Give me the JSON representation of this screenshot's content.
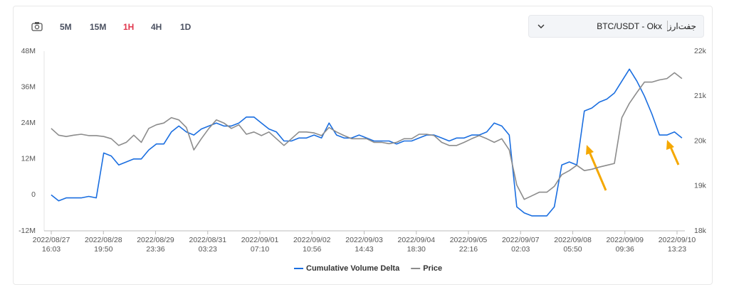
{
  "toolbar": {
    "intervals": [
      "5M",
      "15M",
      "1H",
      "4H",
      "1D"
    ]
  },
  "selector": {
    "pair": "BTC/USDT - Okx",
    "label": "جفت‌ارز"
  },
  "chart_data": {
    "type": "line",
    "x": [
      "2022/08/27 16:00",
      "2022/08/27 20:00",
      "2022/08/28 00:00",
      "2022/08/28 04:00",
      "2022/08/28 08:00",
      "2022/08/28 12:00",
      "2022/08/28 16:00",
      "2022/08/28 20:00",
      "2022/08/29 00:00",
      "2022/08/29 04:00",
      "2022/08/29 08:00",
      "2022/08/29 12:00",
      "2022/08/29 16:00",
      "2022/08/29 20:00",
      "2022/08/30 00:00",
      "2022/08/30 04:00",
      "2022/08/30 08:00",
      "2022/08/30 12:00",
      "2022/08/30 16:00",
      "2022/08/30 20:00",
      "2022/08/31 00:00",
      "2022/08/31 04:00",
      "2022/08/31 08:00",
      "2022/08/31 12:00",
      "2022/08/31 16:00",
      "2022/08/31 20:00",
      "2022/09/01 00:00",
      "2022/09/01 04:00",
      "2022/09/01 08:00",
      "2022/09/01 12:00",
      "2022/09/01 16:00",
      "2022/09/01 20:00",
      "2022/09/02 00:00",
      "2022/09/02 04:00",
      "2022/09/02 08:00",
      "2022/09/02 12:00",
      "2022/09/02 16:00",
      "2022/09/02 20:00",
      "2022/09/03 00:00",
      "2022/09/03 04:00",
      "2022/09/03 08:00",
      "2022/09/03 12:00",
      "2022/09/03 16:00",
      "2022/09/03 20:00",
      "2022/09/04 00:00",
      "2022/09/04 04:00",
      "2022/09/04 08:00",
      "2022/09/04 12:00",
      "2022/09/04 16:00",
      "2022/09/04 20:00",
      "2022/09/05 00:00",
      "2022/09/05 04:00",
      "2022/09/05 08:00",
      "2022/09/05 12:00",
      "2022/09/05 16:00",
      "2022/09/05 20:00",
      "2022/09/06 00:00",
      "2022/09/06 04:00",
      "2022/09/06 08:00",
      "2022/09/06 12:00",
      "2022/09/06 16:00",
      "2022/09/06 20:00",
      "2022/09/07 00:00",
      "2022/09/07 04:00",
      "2022/09/07 08:00",
      "2022/09/07 12:00",
      "2022/09/07 16:00",
      "2022/09/07 20:00",
      "2022/09/08 00:00",
      "2022/09/08 04:00",
      "2022/09/08 08:00",
      "2022/09/08 12:00",
      "2022/09/08 16:00",
      "2022/09/08 20:00",
      "2022/09/09 00:00",
      "2022/09/09 04:00",
      "2022/09/09 08:00",
      "2022/09/09 12:00",
      "2022/09/09 16:00",
      "2022/09/09 20:00",
      "2022/09/10 00:00",
      "2022/09/10 04:00",
      "2022/09/10 08:00",
      "2022/09/10 12:00",
      "2022/09/10 16:00"
    ],
    "xlim": [
      "2022/08/27 12:15",
      "2022/09/10 17:33"
    ],
    "xticks": [
      [
        "2022/08/27",
        "16:03"
      ],
      [
        "2022/08/28",
        "19:50"
      ],
      [
        "2022/08/29",
        "23:36"
      ],
      [
        "2022/08/31",
        "03:23"
      ],
      [
        "2022/09/01",
        "07:10"
      ],
      [
        "2022/09/02",
        "10:56"
      ],
      [
        "2022/09/03",
        "14:43"
      ],
      [
        "2022/09/04",
        "18:30"
      ],
      [
        "2022/09/05",
        "22:16"
      ],
      [
        "2022/09/07",
        "02:03"
      ],
      [
        "2022/09/08",
        "05:50"
      ],
      [
        "2022/09/09",
        "09:36"
      ],
      [
        "2022/09/10",
        "13:23"
      ]
    ],
    "ylim": [
      -12000000,
      48000000
    ],
    "yticks": [
      {
        "value": -12000000,
        "label": "-12M"
      },
      0,
      {
        "value": 12000000,
        "label": "12M"
      },
      {
        "value": 24000000,
        "label": "24M"
      },
      {
        "value": 36000000,
        "label": "36M"
      },
      {
        "value": 48000000,
        "label": "48M"
      }
    ],
    "y2lim": [
      18000,
      22000
    ],
    "y2ticks": [
      {
        "value": 18000,
        "label": "18k"
      },
      {
        "value": 19000,
        "label": "19k"
      },
      {
        "value": 20000,
        "label": "20k"
      },
      {
        "value": 21000,
        "label": "21k"
      },
      {
        "value": 22000,
        "label": "22k"
      }
    ],
    "series": [
      {
        "name": "Cumulative Volume Delta",
        "color": "#1a6ee0",
        "values": [
          0,
          -2000000,
          -1000000,
          -1000000,
          -1000000,
          -500000,
          -1000000,
          14000000,
          13000000,
          10000000,
          11000000,
          12000000,
          12000000,
          15000000,
          17000000,
          17000000,
          21000000,
          23000000,
          21000000,
          20000000,
          22000000,
          23000000,
          24000000,
          23000000,
          23000000,
          24000000,
          26000000,
          26000000,
          24000000,
          22000000,
          21000000,
          18000000,
          18000000,
          19000000,
          19000000,
          20000000,
          19000000,
          24000000,
          20000000,
          19000000,
          19000000,
          20000000,
          19000000,
          18000000,
          18000000,
          18000000,
          17000000,
          18000000,
          18000000,
          19000000,
          20000000,
          20000000,
          19000000,
          18000000,
          19000000,
          19000000,
          20000000,
          20000000,
          21000000,
          24000000,
          23000000,
          20000000,
          -4000000,
          -6000000,
          -7000000,
          -7000000,
          -7000000,
          -4000000,
          10000000,
          11000000,
          10000000,
          28000000,
          29000000,
          31000000,
          32000000,
          34000000,
          38000000,
          42000000,
          38000000,
          33000000,
          27000000,
          20000000,
          20000000,
          21000000,
          19000000
        ]
      },
      {
        "name": "Price",
        "color": "#8c8c8c",
        "axis": "y2",
        "values": [
          20280,
          20130,
          20100,
          20130,
          20150,
          20120,
          20120,
          20100,
          20050,
          19900,
          19970,
          20130,
          19970,
          20280,
          20360,
          20400,
          20520,
          20470,
          20300,
          19800,
          20050,
          20280,
          20470,
          20400,
          20280,
          20360,
          20150,
          20200,
          20120,
          20200,
          20050,
          19900,
          20050,
          20200,
          20200,
          20180,
          20120,
          20300,
          20200,
          20120,
          20050,
          20050,
          20050,
          19970,
          19970,
          19940,
          19970,
          20050,
          20050,
          20150,
          20150,
          20120,
          19970,
          19900,
          19900,
          19970,
          20050,
          20120,
          20050,
          19970,
          20050,
          19800,
          19020,
          18700,
          18780,
          18860,
          18860,
          18990,
          19250,
          19340,
          19460,
          19340,
          19370,
          19420,
          19460,
          19500,
          20520,
          20840,
          21080,
          21310,
          21310,
          21360,
          21390,
          21520,
          21390
        ]
      }
    ],
    "legend": "bottom"
  }
}
